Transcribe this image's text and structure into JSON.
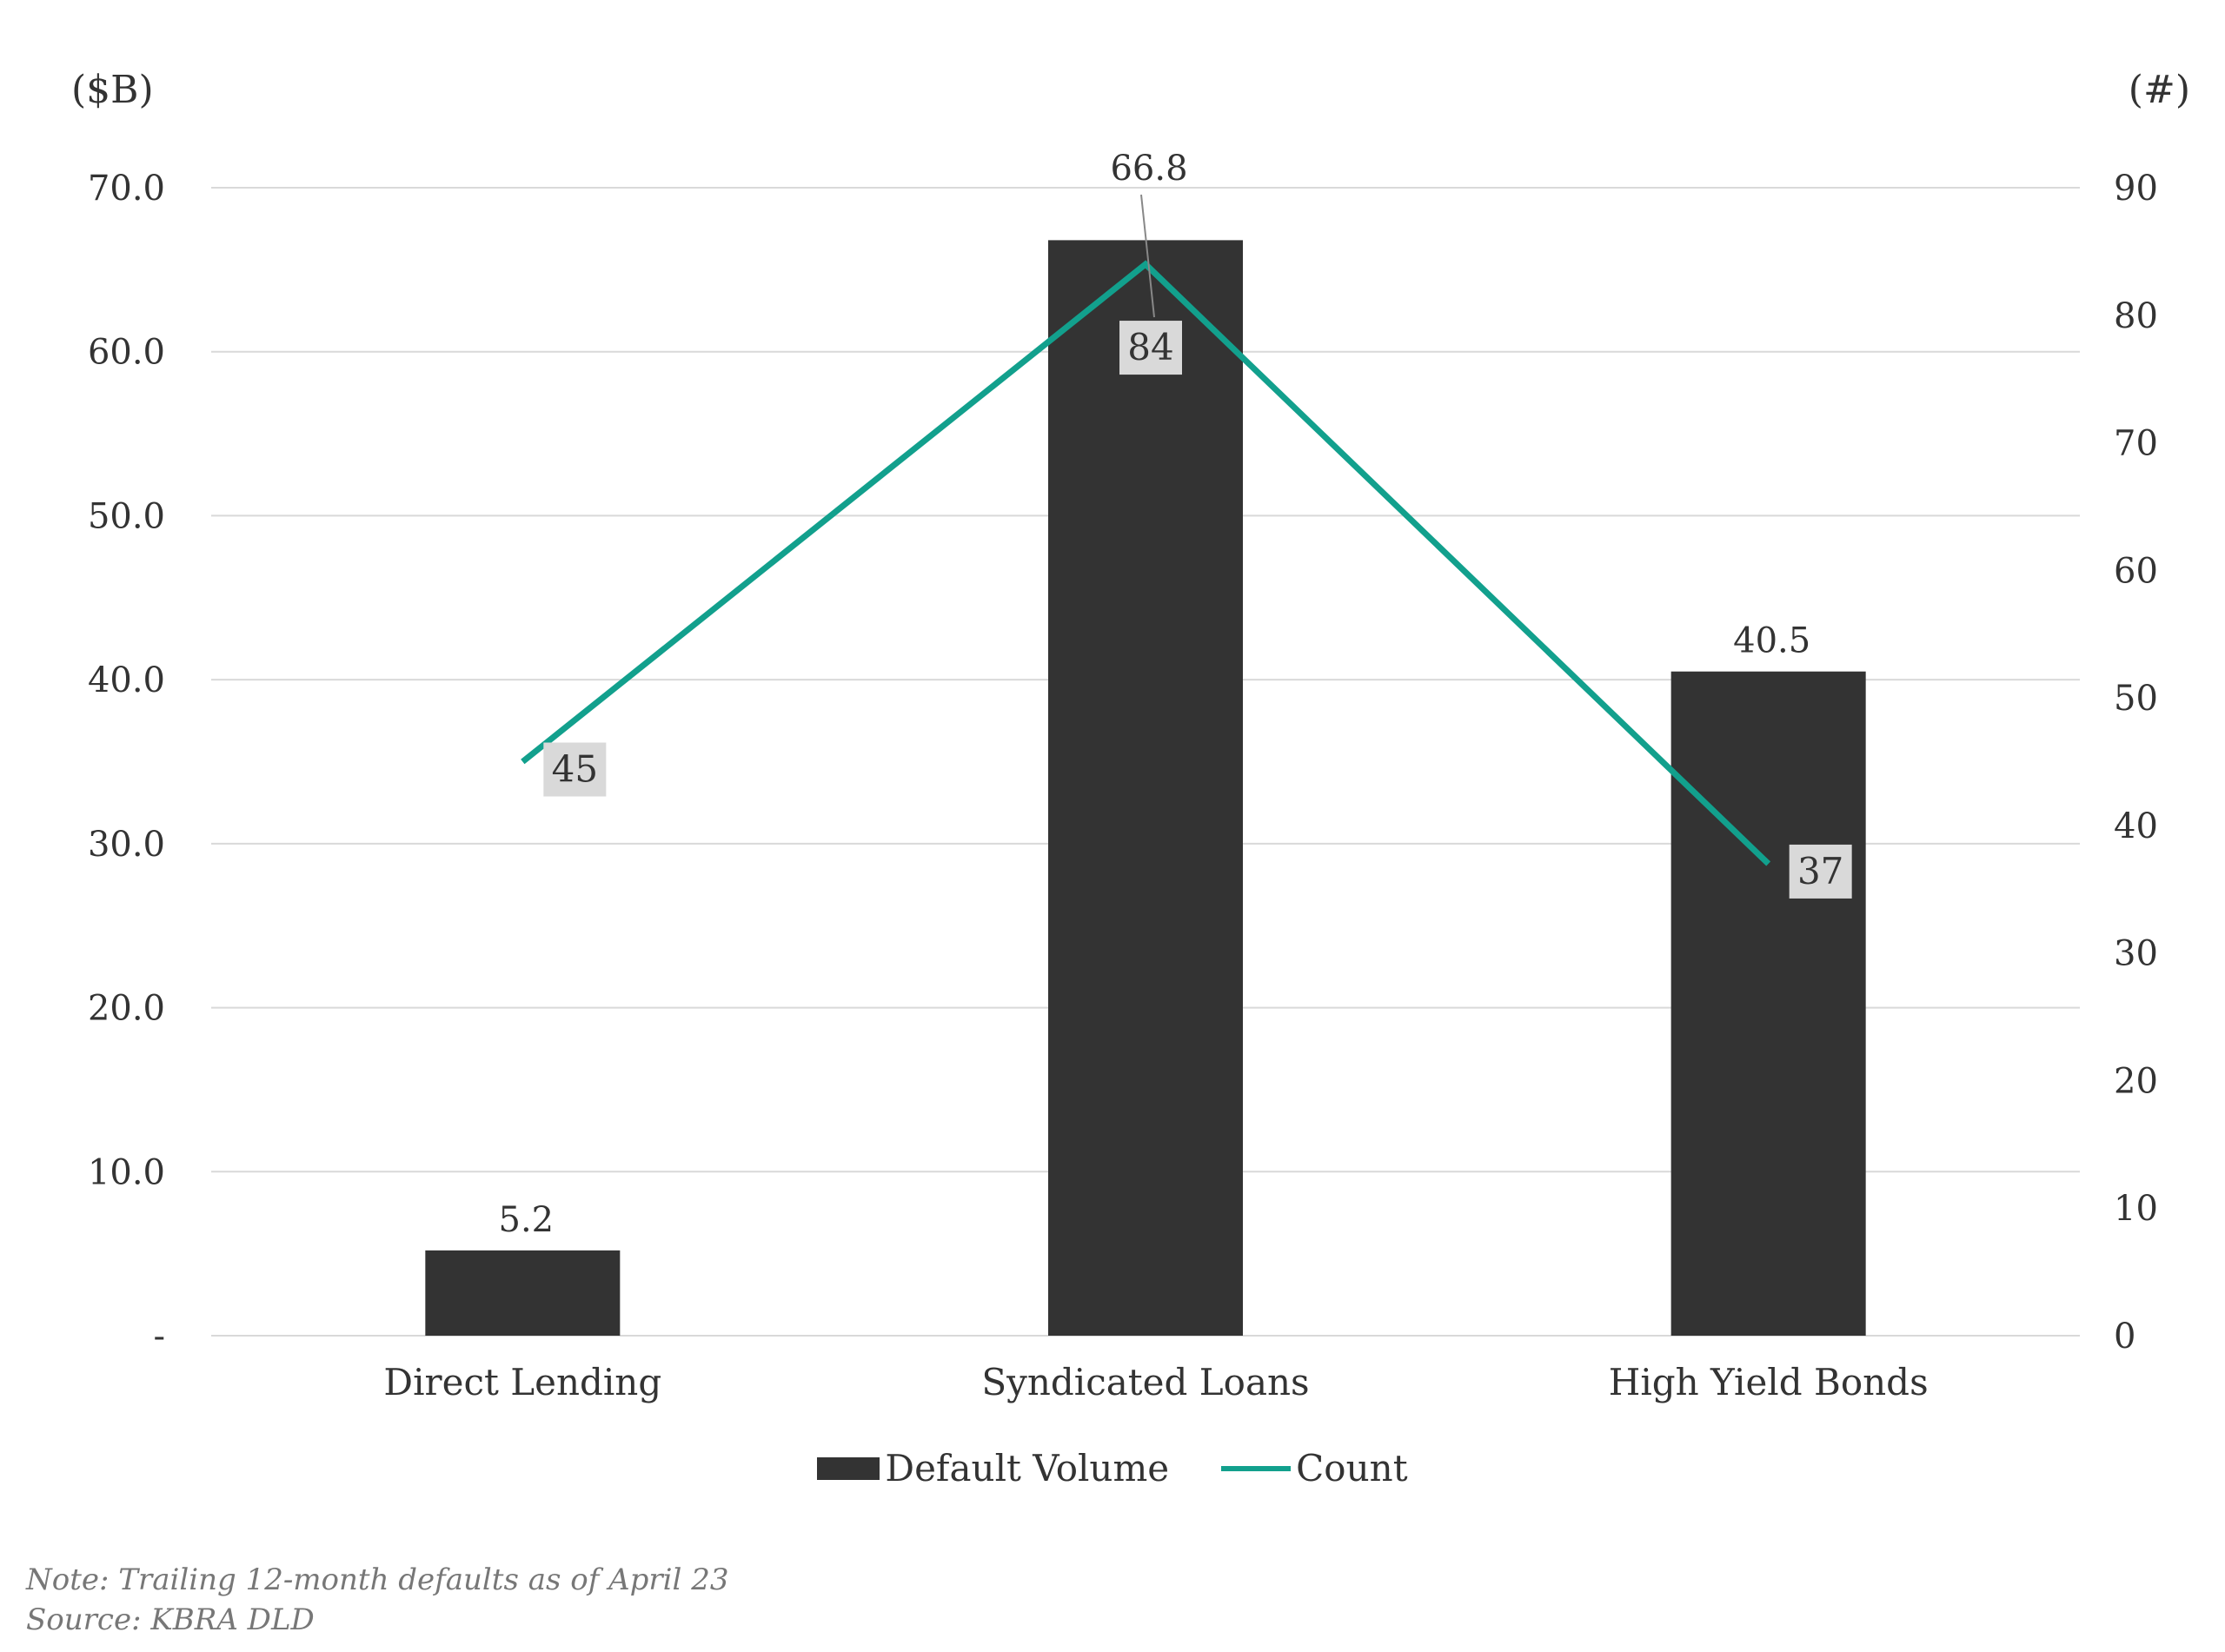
{
  "chart_data": {
    "type": "bar",
    "categories": [
      "Direct Lending",
      "Syndicated Loans",
      "High Yield Bonds"
    ],
    "series": [
      {
        "name": "Default Volume",
        "type": "bar",
        "axis": "left",
        "values": [
          5.2,
          66.8,
          40.5
        ],
        "labels": [
          "5.2",
          "66.8",
          "40.5"
        ],
        "color": "#333333"
      },
      {
        "name": "Count",
        "type": "line",
        "axis": "right",
        "values": [
          45,
          84,
          37
        ],
        "labels": [
          "45",
          "84",
          "37"
        ],
        "color": "#12a08d"
      }
    ],
    "left_axis": {
      "unit_label": "($B)",
      "ylim": [
        0,
        70
      ],
      "ticks": [
        0,
        10,
        20,
        30,
        40,
        50,
        60,
        70
      ],
      "tick_labels": [
        "-",
        "10.0",
        "20.0",
        "30.0",
        "40.0",
        "50.0",
        "60.0",
        "70.0"
      ]
    },
    "right_axis": {
      "unit_label": "(#)",
      "ylim": [
        0,
        90
      ],
      "ticks": [
        0,
        10,
        20,
        30,
        40,
        50,
        60,
        70,
        80,
        90
      ],
      "tick_labels": [
        "0",
        "10",
        "20",
        "30",
        "40",
        "50",
        "60",
        "70",
        "80",
        "90"
      ]
    },
    "grid": true,
    "legend_position": "bottom-center"
  },
  "notes": {
    "note": "Note: Trailing 12-month defaults as of April 23",
    "source": "Source: KBRA DLD"
  },
  "colors": {
    "bar": "#333333",
    "line": "#12a08d",
    "grid": "#d9d9d9",
    "label_box": "#d9d9d9",
    "text": "#333333",
    "notes": "#777777"
  }
}
